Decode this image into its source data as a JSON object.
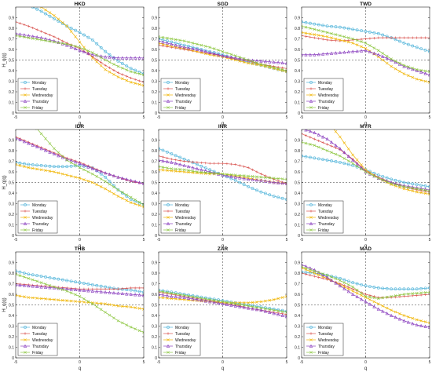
{
  "colors": {
    "Monday": "#4fb3d9",
    "Tuesday": "#d9534f",
    "Wednesday": "#f0b400",
    "Thursday": "#8a3fbf",
    "Friday": "#8cc63f"
  },
  "chart_data": {
    "type": "line",
    "shared": {
      "xlabel": "q",
      "ylabel": "H_q(q)",
      "xlim": [
        -5,
        5
      ],
      "ylim": [
        0,
        1
      ],
      "xticks": [
        -5,
        0,
        5
      ],
      "yticks": [
        0,
        0.1,
        0.2,
        0.3,
        0.4,
        0.5,
        0.6,
        0.7,
        0.8,
        0.9
      ],
      "reference_lines": {
        "x": 0,
        "y": 0.5
      },
      "legend_location": "bottom-left",
      "grid": false,
      "x": [
        -5,
        -4,
        -3,
        -2,
        -1,
        0,
        1,
        2,
        3,
        4,
        5
      ]
    },
    "panels": [
      {
        "title": "HKD",
        "series": [
          {
            "name": "Monday",
            "marker": "circle",
            "values": [
              1.08,
              1.02,
              0.96,
              0.89,
              0.82,
              0.76,
              0.69,
              0.58,
              0.49,
              0.42,
              0.37
            ]
          },
          {
            "name": "Tuesday",
            "marker": "plus",
            "values": [
              0.86,
              0.82,
              0.77,
              0.72,
              0.66,
              0.61,
              0.53,
              0.45,
              0.38,
              0.33,
              0.29
            ]
          },
          {
            "name": "Wednesday",
            "marker": "x",
            "values": [
              1.15,
              1.08,
              1.0,
              0.92,
              0.82,
              0.67,
              0.52,
              0.41,
              0.34,
              0.29,
              0.26
            ]
          },
          {
            "name": "Thursday",
            "marker": "triangle",
            "values": [
              0.75,
              0.73,
              0.71,
              0.68,
              0.64,
              0.59,
              0.55,
              0.53,
              0.52,
              0.52,
              0.52
            ]
          },
          {
            "name": "Friday",
            "marker": "x",
            "values": [
              0.73,
              0.71,
              0.69,
              0.67,
              0.65,
              0.62,
              0.57,
              0.5,
              0.44,
              0.39,
              0.36
            ]
          }
        ]
      },
      {
        "title": "SGD",
        "series": [
          {
            "name": "Monday",
            "marker": "circle",
            "values": [
              0.7,
              0.67,
              0.64,
              0.61,
              0.58,
              0.55,
              0.51,
              0.48,
              0.45,
              0.42,
              0.39
            ]
          },
          {
            "name": "Tuesday",
            "marker": "plus",
            "values": [
              0.64,
              0.62,
              0.6,
              0.58,
              0.56,
              0.54,
              0.51,
              0.49,
              0.46,
              0.44,
              0.42
            ]
          },
          {
            "name": "Wednesday",
            "marker": "x",
            "values": [
              0.66,
              0.63,
              0.61,
              0.58,
              0.55,
              0.53,
              0.5,
              0.47,
              0.45,
              0.42,
              0.39
            ]
          },
          {
            "name": "Thursday",
            "marker": "triangle",
            "values": [
              0.68,
              0.65,
              0.62,
              0.6,
              0.57,
              0.54,
              0.52,
              0.5,
              0.49,
              0.48,
              0.47
            ]
          },
          {
            "name": "Friday",
            "marker": "x",
            "values": [
              0.72,
              0.7,
              0.68,
              0.65,
              0.62,
              0.58,
              0.54,
              0.5,
              0.46,
              0.43,
              0.4
            ]
          }
        ]
      },
      {
        "title": "TWD",
        "series": [
          {
            "name": "Monday",
            "marker": "circle",
            "values": [
              0.86,
              0.84,
              0.82,
              0.81,
              0.79,
              0.77,
              0.75,
              0.71,
              0.66,
              0.62,
              0.58
            ]
          },
          {
            "name": "Tuesday",
            "marker": "plus",
            "values": [
              0.73,
              0.71,
              0.69,
              0.68,
              0.69,
              0.7,
              0.71,
              0.71,
              0.71,
              0.71,
              0.71
            ]
          },
          {
            "name": "Wednesday",
            "marker": "x",
            "values": [
              0.76,
              0.74,
              0.72,
              0.69,
              0.66,
              0.61,
              0.53,
              0.44,
              0.37,
              0.32,
              0.29
            ]
          },
          {
            "name": "Thursday",
            "marker": "triangle",
            "values": [
              0.55,
              0.55,
              0.56,
              0.57,
              0.58,
              0.59,
              0.55,
              0.5,
              0.44,
              0.4,
              0.36
            ]
          },
          {
            "name": "Friday",
            "marker": "x",
            "values": [
              0.82,
              0.79,
              0.76,
              0.73,
              0.7,
              0.66,
              0.59,
              0.51,
              0.45,
              0.41,
              0.39
            ]
          }
        ]
      },
      {
        "title": "IDR",
        "series": [
          {
            "name": "Monday",
            "marker": "circle",
            "values": [
              0.69,
              0.67,
              0.66,
              0.65,
              0.65,
              0.66,
              0.64,
              0.55,
              0.43,
              0.34,
              0.29
            ]
          },
          {
            "name": "Tuesday",
            "marker": "plus",
            "values": [
              0.93,
              0.88,
              0.83,
              0.78,
              0.73,
              0.69,
              0.64,
              0.59,
              0.55,
              0.51,
              0.49
            ]
          },
          {
            "name": "Wednesday",
            "marker": "x",
            "values": [
              0.67,
              0.64,
              0.62,
              0.6,
              0.57,
              0.54,
              0.5,
              0.44,
              0.37,
              0.31,
              0.27
            ]
          },
          {
            "name": "Thursday",
            "marker": "triangle",
            "values": [
              0.92,
              0.87,
              0.82,
              0.77,
              0.72,
              0.68,
              0.63,
              0.59,
              0.55,
              0.52,
              0.49
            ]
          },
          {
            "name": "Friday",
            "marker": "x",
            "values": [
              1.25,
              1.1,
              0.96,
              0.82,
              0.71,
              0.64,
              0.58,
              0.51,
              0.43,
              0.36,
              0.29
            ]
          }
        ]
      },
      {
        "title": "INR",
        "series": [
          {
            "name": "Monday",
            "marker": "circle",
            "values": [
              0.82,
              0.77,
              0.72,
              0.67,
              0.62,
              0.57,
              0.52,
              0.46,
              0.41,
              0.37,
              0.34
            ]
          },
          {
            "name": "Tuesday",
            "marker": "plus",
            "values": [
              0.75,
              0.72,
              0.7,
              0.69,
              0.68,
              0.68,
              0.67,
              0.64,
              0.58,
              0.53,
              0.49
            ]
          },
          {
            "name": "Wednesday",
            "marker": "x",
            "values": [
              0.62,
              0.61,
              0.6,
              0.59,
              0.58,
              0.58,
              0.56,
              0.54,
              0.52,
              0.5,
              0.49
            ]
          },
          {
            "name": "Thursday",
            "marker": "triangle",
            "values": [
              0.71,
              0.69,
              0.66,
              0.63,
              0.6,
              0.57,
              0.55,
              0.53,
              0.52,
              0.5,
              0.49
            ]
          },
          {
            "name": "Friday",
            "marker": "x",
            "values": [
              0.65,
              0.63,
              0.62,
              0.6,
              0.59,
              0.58,
              0.57,
              0.56,
              0.55,
              0.54,
              0.53
            ]
          }
        ]
      },
      {
        "title": "MYR",
        "series": [
          {
            "name": "Monday",
            "marker": "circle",
            "values": [
              0.75,
              0.73,
              0.71,
              0.69,
              0.66,
              0.62,
              0.57,
              0.53,
              0.5,
              0.48,
              0.46
            ]
          },
          {
            "name": "Tuesday",
            "marker": "plus",
            "values": [
              0.96,
              0.91,
              0.86,
              0.81,
              0.72,
              0.61,
              0.55,
              0.5,
              0.46,
              0.43,
              0.41
            ]
          },
          {
            "name": "Wednesday",
            "marker": "x",
            "values": [
              1.3,
              1.2,
              1.08,
              0.93,
              0.76,
              0.62,
              0.54,
              0.48,
              0.44,
              0.41,
              0.39
            ]
          },
          {
            "name": "Thursday",
            "marker": "triangle",
            "values": [
              1.01,
              0.97,
              0.91,
              0.82,
              0.71,
              0.6,
              0.54,
              0.5,
              0.47,
              0.45,
              0.43
            ]
          },
          {
            "name": "Friday",
            "marker": "x",
            "values": [
              0.88,
              0.85,
              0.8,
              0.75,
              0.68,
              0.6,
              0.54,
              0.49,
              0.46,
              0.44,
              0.42
            ]
          }
        ]
      },
      {
        "title": "THB",
        "series": [
          {
            "name": "Monday",
            "marker": "circle",
            "values": [
              0.82,
              0.79,
              0.77,
              0.75,
              0.73,
              0.71,
              0.69,
              0.67,
              0.65,
              0.64,
              0.62
            ]
          },
          {
            "name": "Tuesday",
            "marker": "plus",
            "values": [
              0.7,
              0.69,
              0.68,
              0.67,
              0.66,
              0.65,
              0.65,
              0.65,
              0.65,
              0.66,
              0.66
            ]
          },
          {
            "name": "Wednesday",
            "marker": "x",
            "values": [
              0.59,
              0.57,
              0.56,
              0.55,
              0.54,
              0.53,
              0.52,
              0.51,
              0.49,
              0.48,
              0.46
            ]
          },
          {
            "name": "Thursday",
            "marker": "triangle",
            "values": [
              0.69,
              0.68,
              0.67,
              0.66,
              0.65,
              0.64,
              0.63,
              0.62,
              0.61,
              0.6,
              0.59
            ]
          },
          {
            "name": "Friday",
            "marker": "x",
            "values": [
              0.79,
              0.75,
              0.71,
              0.67,
              0.63,
              0.58,
              0.51,
              0.43,
              0.35,
              0.29,
              0.24
            ]
          }
        ]
      },
      {
        "title": "ZAR",
        "series": [
          {
            "name": "Monday",
            "marker": "circle",
            "values": [
              0.64,
              0.62,
              0.6,
              0.58,
              0.56,
              0.54,
              0.52,
              0.5,
              0.48,
              0.46,
              0.44
            ]
          },
          {
            "name": "Tuesday",
            "marker": "plus",
            "values": [
              0.62,
              0.6,
              0.58,
              0.56,
              0.54,
              0.52,
              0.5,
              0.47,
              0.45,
              0.43,
              0.41
            ]
          },
          {
            "name": "Wednesday",
            "marker": "x",
            "values": [
              0.57,
              0.56,
              0.55,
              0.54,
              0.53,
              0.52,
              0.52,
              0.52,
              0.53,
              0.55,
              0.58
            ]
          },
          {
            "name": "Thursday",
            "marker": "triangle",
            "values": [
              0.6,
              0.58,
              0.57,
              0.55,
              0.53,
              0.51,
              0.49,
              0.47,
              0.45,
              0.42,
              0.39
            ]
          },
          {
            "name": "Friday",
            "marker": "x",
            "values": [
              0.63,
              0.61,
              0.59,
              0.57,
              0.55,
              0.53,
              0.51,
              0.49,
              0.47,
              0.45,
              0.43
            ]
          }
        ]
      },
      {
        "title": "MAD",
        "series": [
          {
            "name": "Monday",
            "marker": "circle",
            "values": [
              0.81,
              0.8,
              0.78,
              0.75,
              0.71,
              0.68,
              0.66,
              0.65,
              0.65,
              0.65,
              0.66
            ]
          },
          {
            "name": "Tuesday",
            "marker": "plus",
            "values": [
              0.8,
              0.77,
              0.74,
              0.7,
              0.65,
              0.6,
              0.57,
              0.57,
              0.58,
              0.59,
              0.6
            ]
          },
          {
            "name": "Wednesday",
            "marker": "x",
            "values": [
              0.85,
              0.8,
              0.75,
              0.69,
              0.63,
              0.57,
              0.51,
              0.45,
              0.4,
              0.36,
              0.33
            ]
          },
          {
            "name": "Thursday",
            "marker": "triangle",
            "values": [
              0.88,
              0.83,
              0.76,
              0.68,
              0.6,
              0.53,
              0.46,
              0.4,
              0.35,
              0.31,
              0.29
            ]
          },
          {
            "name": "Friday",
            "marker": "x",
            "values": [
              0.86,
              0.82,
              0.78,
              0.73,
              0.67,
              0.58,
              0.56,
              0.58,
              0.6,
              0.61,
              0.62
            ]
          }
        ]
      }
    ]
  }
}
